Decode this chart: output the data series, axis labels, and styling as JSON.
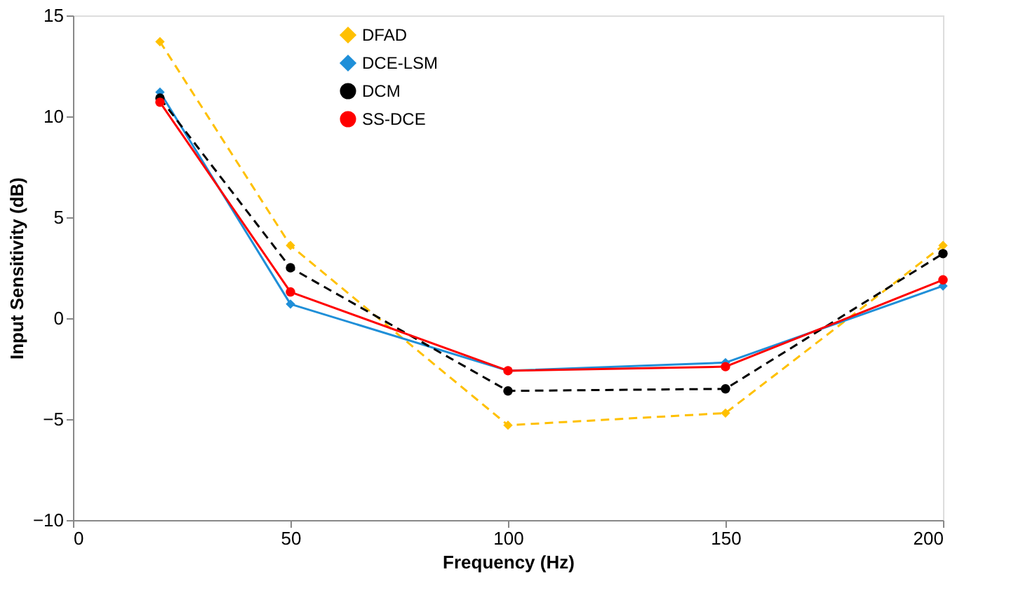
{
  "chart_data": {
    "type": "line",
    "xlabel": "Frequency (Hz)",
    "ylabel": "Input Sensitivity (dB)",
    "x": [
      20,
      50,
      100,
      150,
      200
    ],
    "series": [
      {
        "name": "DFAD",
        "color": "#ffc000",
        "values": [
          13.7,
          3.6,
          -5.3,
          -4.7,
          3.6
        ],
        "marker": "diamond",
        "line_style": "dashed"
      },
      {
        "name": "DCE-LSM",
        "color": "#1f8fd8",
        "values": [
          11.2,
          0.7,
          -2.6,
          -2.2,
          1.6
        ],
        "marker": "diamond",
        "line_style": "solid"
      },
      {
        "name": "DCM",
        "color": "#000000",
        "values": [
          10.9,
          2.5,
          -3.6,
          -3.5,
          3.2
        ],
        "marker": "circle",
        "line_style": "dashed"
      },
      {
        "name": "SS-DCE",
        "color": "#ff0000",
        "values": [
          10.7,
          1.3,
          -2.6,
          -2.4,
          1.9
        ],
        "marker": "circle",
        "line_style": "solid"
      }
    ],
    "xlim": [
      0,
      200
    ],
    "xticks": [
      0,
      50,
      100,
      150,
      200
    ],
    "ylim": [
      -10,
      15
    ],
    "yticks": [
      -10,
      -5,
      0,
      5,
      10,
      15
    ],
    "grid": false,
    "legend": "top"
  }
}
